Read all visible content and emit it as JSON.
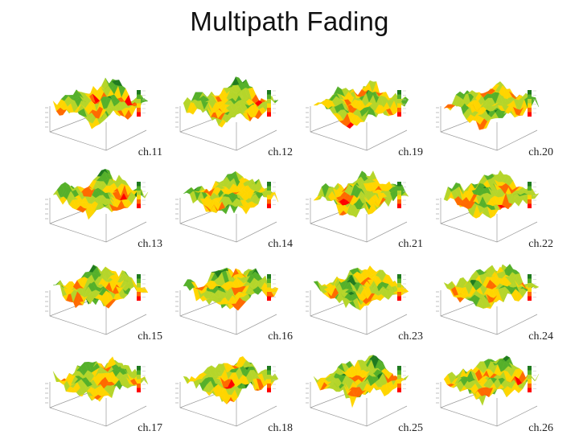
{
  "title": "Multipath Fading",
  "colors": {
    "palette": [
      "#ff0000",
      "#ff6a00",
      "#ffd500",
      "#b5d52a",
      "#55b02a",
      "#1f7a1f"
    ]
  },
  "panels": [
    {
      "label": "ch.11",
      "seed": 11
    },
    {
      "label": "ch.12",
      "seed": 12
    },
    {
      "label": "ch.19",
      "seed": 19
    },
    {
      "label": "ch.20",
      "seed": 20
    },
    {
      "label": "ch.13",
      "seed": 13
    },
    {
      "label": "ch.14",
      "seed": 14
    },
    {
      "label": "ch.21",
      "seed": 21
    },
    {
      "label": "ch.22",
      "seed": 22
    },
    {
      "label": "ch.15",
      "seed": 15
    },
    {
      "label": "ch.16",
      "seed": 16
    },
    {
      "label": "ch.23",
      "seed": 23
    },
    {
      "label": "ch.24",
      "seed": 24
    },
    {
      "label": "ch.17",
      "seed": 17
    },
    {
      "label": "ch.18",
      "seed": 18
    },
    {
      "label": "ch.25",
      "seed": 25
    },
    {
      "label": "ch.26",
      "seed": 26
    }
  ]
}
